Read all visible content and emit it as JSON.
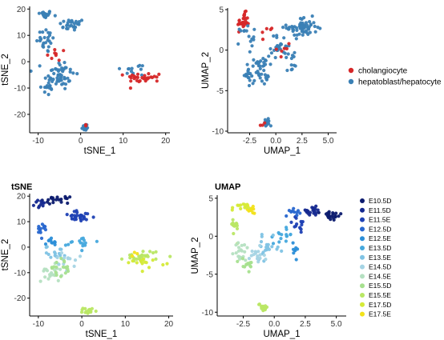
{
  "chart_data": [
    {
      "type": "scatter",
      "title": "",
      "xlabel": "tSNE_1",
      "ylabel": "tSNE_2",
      "xlim": [
        -12,
        21
      ],
      "ylim": [
        -27,
        21
      ],
      "xticks": [
        -10,
        0,
        10,
        20
      ],
      "yticks": [
        -20,
        -10,
        0,
        10,
        20
      ],
      "legend": "cell_type",
      "clusters": [
        {
          "group": "hepatoblast/hepatocyte",
          "cx": -8.5,
          "cy": 18,
          "sx": 1.5,
          "sy": 1.2,
          "n": 20
        },
        {
          "group": "hepatoblast/hepatocyte",
          "cx": -2,
          "cy": 14,
          "sx": 2.5,
          "sy": 2,
          "n": 25
        },
        {
          "group": "hepatoblast/hepatocyte",
          "cx": -8,
          "cy": 8,
          "sx": 2,
          "sy": 4,
          "n": 25
        },
        {
          "group": "hepatoblast/hepatocyte",
          "cx": -5,
          "cy": -5,
          "sx": 3,
          "sy": 5,
          "n": 55
        },
        {
          "group": "hepatoblast/hepatocyte",
          "cx": -8,
          "cy": -10,
          "sx": 1.5,
          "sy": 3,
          "n": 12
        },
        {
          "group": "hepatoblast/hepatocyte",
          "cx": 13,
          "cy": -3,
          "sx": 3,
          "sy": 2,
          "n": 12
        },
        {
          "group": "hepatoblast/hepatocyte",
          "cx": 1,
          "cy": -25,
          "sx": 0.7,
          "sy": 1.2,
          "n": 15
        },
        {
          "group": "cholangiocyte",
          "cx": 15,
          "cy": -6,
          "sx": 3.5,
          "sy": 1.6,
          "n": 30
        },
        {
          "group": "cholangiocyte",
          "cx": -6,
          "cy": 2,
          "sx": 2,
          "sy": 3,
          "n": 8
        },
        {
          "group": "cholangiocyte",
          "cx": 1.5,
          "cy": -24,
          "sx": 0.6,
          "sy": 0.8,
          "n": 3
        }
      ]
    },
    {
      "type": "scatter",
      "title": "",
      "xlabel": "UMAP_1",
      "ylabel": "UMAP_2",
      "xlim": [
        -4.6,
        5.8
      ],
      "ylim": [
        -10.2,
        5.2
      ],
      "xticks": [
        -2.5,
        0.0,
        2.5,
        5.0
      ],
      "yticks": [
        -10,
        -5,
        0,
        5
      ],
      "legend": "cell_type",
      "clusters": [
        {
          "group": "cholangiocyte",
          "cx": -3.1,
          "cy": 3.5,
          "sx": 0.45,
          "sy": 0.9,
          "n": 28
        },
        {
          "group": "cholangiocyte",
          "cx": -1.0,
          "cy": 2.5,
          "sx": 0.6,
          "sy": 1,
          "n": 5
        },
        {
          "group": "hepatoblast/hepatocyte",
          "cx": -2.7,
          "cy": 1.5,
          "sx": 0.6,
          "sy": 1.5,
          "n": 15
        },
        {
          "group": "hepatoblast/hepatocyte",
          "cx": 2.5,
          "cy": 2.8,
          "sx": 1.2,
          "sy": 1,
          "n": 60
        },
        {
          "group": "hepatoblast/hepatocyte",
          "cx": 0.5,
          "cy": 0.5,
          "sx": 0.8,
          "sy": 1.2,
          "n": 25
        },
        {
          "group": "hepatoblast/hepatocyte",
          "cx": -1.5,
          "cy": -2.5,
          "sx": 0.7,
          "sy": 1.5,
          "n": 40
        },
        {
          "group": "hepatoblast/hepatocyte",
          "cx": -2.7,
          "cy": -3,
          "sx": 0.3,
          "sy": 0.8,
          "n": 15
        },
        {
          "group": "hepatoblast/hepatocyte",
          "cx": 1.5,
          "cy": -1.5,
          "sx": 0.7,
          "sy": 1.5,
          "n": 12
        },
        {
          "group": "hepatoblast/hepatocyte",
          "cx": -0.9,
          "cy": -9,
          "sx": 0.25,
          "sy": 0.5,
          "n": 14
        },
        {
          "group": "cholangiocyte",
          "cx": 0.8,
          "cy": 0.3,
          "sx": 0.6,
          "sy": 0.8,
          "n": 6
        },
        {
          "group": "cholangiocyte",
          "cx": -1.2,
          "cy": -9.2,
          "sx": 0.2,
          "sy": 0.3,
          "n": 3
        }
      ]
    },
    {
      "type": "scatter",
      "title": "tSNE",
      "xlabel": "tSNE_1",
      "ylabel": "tSNE_2",
      "xlim": [
        -12,
        21
      ],
      "ylim": [
        -27,
        21
      ],
      "xticks": [
        -10,
        0,
        10,
        20
      ],
      "yticks": [
        -20,
        -10,
        0,
        10,
        20
      ],
      "legend": "stage",
      "clusters": [
        {
          "group": "E10.5D",
          "cx": -6,
          "cy": 18.5,
          "sx": 2.5,
          "sy": 1,
          "n": 20
        },
        {
          "group": "E11.5D",
          "cx": -9,
          "cy": 17,
          "sx": 1.5,
          "sy": 1.5,
          "n": 10
        },
        {
          "group": "E11.5E",
          "cx": -0.5,
          "cy": 12,
          "sx": 3,
          "sy": 1.8,
          "n": 28
        },
        {
          "group": "E12.5D",
          "cx": -9,
          "cy": 6,
          "sx": 1.5,
          "sy": 2.5,
          "n": 12
        },
        {
          "group": "E12.5E",
          "cx": -7,
          "cy": 2,
          "sx": 1.5,
          "sy": 2,
          "n": 10
        },
        {
          "group": "E13.5D",
          "cx": 0,
          "cy": 2,
          "sx": 3,
          "sy": 2,
          "n": 15
        },
        {
          "group": "E13.5E",
          "cx": -6,
          "cy": -2,
          "sx": 2,
          "sy": 2,
          "n": 15
        },
        {
          "group": "E14.5D",
          "cx": -4,
          "cy": -6,
          "sx": 2,
          "sy": 3,
          "n": 15
        },
        {
          "group": "E14.5E",
          "cx": -7,
          "cy": -10,
          "sx": 2,
          "sy": 3,
          "n": 20
        },
        {
          "group": "E15.5D",
          "cx": -5,
          "cy": -8,
          "sx": 2,
          "sy": 3,
          "n": 18
        },
        {
          "group": "E15.5E",
          "cx": 14,
          "cy": -3.5,
          "sx": 3.5,
          "sy": 2,
          "n": 25
        },
        {
          "group": "E17.5D",
          "cx": 15,
          "cy": -6,
          "sx": 3.5,
          "sy": 1.5,
          "n": 15
        },
        {
          "group": "E15.5E",
          "cx": 1.5,
          "cy": -25,
          "sx": 1,
          "sy": 1,
          "n": 18
        },
        {
          "group": "E17.5E",
          "cx": 12,
          "cy": -3,
          "sx": 1,
          "sy": 1,
          "n": 3
        }
      ]
    },
    {
      "type": "scatter",
      "title": "UMAP",
      "xlabel": "UMAP_1",
      "ylabel": "UMAP_2",
      "xlim": [
        -4.6,
        5.8
      ],
      "ylim": [
        -10.5,
        5.4
      ],
      "xticks": [
        -2.5,
        0.0,
        2.5,
        5.0
      ],
      "yticks": [
        -10,
        -5,
        0,
        5
      ],
      "legend": "stage",
      "clusters": [
        {
          "group": "E17.5E",
          "cx": -1.8,
          "cy": 3.6,
          "sx": 0.3,
          "sy": 0.5,
          "n": 12
        },
        {
          "group": "E17.5D",
          "cx": -2.8,
          "cy": 3.7,
          "sx": 0.5,
          "sy": 0.5,
          "n": 12
        },
        {
          "group": "E15.5E",
          "cx": -3.3,
          "cy": 1.2,
          "sx": 0.4,
          "sy": 1.2,
          "n": 14
        },
        {
          "group": "E10.5D",
          "cx": 4.6,
          "cy": 2.7,
          "sx": 0.7,
          "sy": 0.6,
          "n": 20
        },
        {
          "group": "E11.5D",
          "cx": 3.0,
          "cy": 3.3,
          "sx": 0.8,
          "sy": 0.5,
          "n": 18
        },
        {
          "group": "E11.5E",
          "cx": 2.0,
          "cy": 1.5,
          "sx": 0.8,
          "sy": 1,
          "n": 15
        },
        {
          "group": "E12.5D",
          "cx": 1.5,
          "cy": 3.3,
          "sx": 0.5,
          "sy": 0.5,
          "n": 10
        },
        {
          "group": "E13.5D",
          "cx": 0.8,
          "cy": 0.2,
          "sx": 0.7,
          "sy": 1,
          "n": 15
        },
        {
          "group": "E13.5E",
          "cx": -0.5,
          "cy": -1.5,
          "sx": 0.8,
          "sy": 1.2,
          "n": 20
        },
        {
          "group": "E14.5D",
          "cx": -1.5,
          "cy": -3,
          "sx": 0.6,
          "sy": 1.2,
          "n": 18
        },
        {
          "group": "E14.5E",
          "cx": -2.7,
          "cy": -2,
          "sx": 0.5,
          "sy": 1.2,
          "n": 18
        },
        {
          "group": "E15.5D",
          "cx": -2.2,
          "cy": -3.8,
          "sx": 0.5,
          "sy": 0.8,
          "n": 14
        },
        {
          "group": "E12.5E",
          "cx": 1.5,
          "cy": -1.5,
          "sx": 0.5,
          "sy": 1,
          "n": 8
        },
        {
          "group": "E15.5E",
          "cx": -0.9,
          "cy": -9.3,
          "sx": 0.3,
          "sy": 0.5,
          "n": 16
        }
      ]
    }
  ],
  "legends": {
    "cell_type": {
      "items": [
        {
          "label": "cholangiocyte",
          "color": "#d62728"
        },
        {
          "label": "hepatoblast/hepatocyte",
          "color": "#3a80b5"
        }
      ]
    },
    "stage": {
      "items": [
        {
          "label": "E10.5D",
          "color": "#0b1a6e"
        },
        {
          "label": "E11.5D",
          "color": "#14288f"
        },
        {
          "label": "E11.5E",
          "color": "#1f41b4"
        },
        {
          "label": "E12.5D",
          "color": "#2766cf"
        },
        {
          "label": "E12.5E",
          "color": "#2b8ed8"
        },
        {
          "label": "E13.5D",
          "color": "#45a8dd"
        },
        {
          "label": "E13.5E",
          "color": "#7fc3e4"
        },
        {
          "label": "E14.5D",
          "color": "#a5d4e4"
        },
        {
          "label": "E14.5E",
          "color": "#b5e0c1"
        },
        {
          "label": "E15.5D",
          "color": "#a6e08e"
        },
        {
          "label": "E15.5E",
          "color": "#b9e764"
        },
        {
          "label": "E17.5D",
          "color": "#d5ea37"
        },
        {
          "label": "E17.5E",
          "color": "#f2e21a"
        }
      ]
    }
  }
}
